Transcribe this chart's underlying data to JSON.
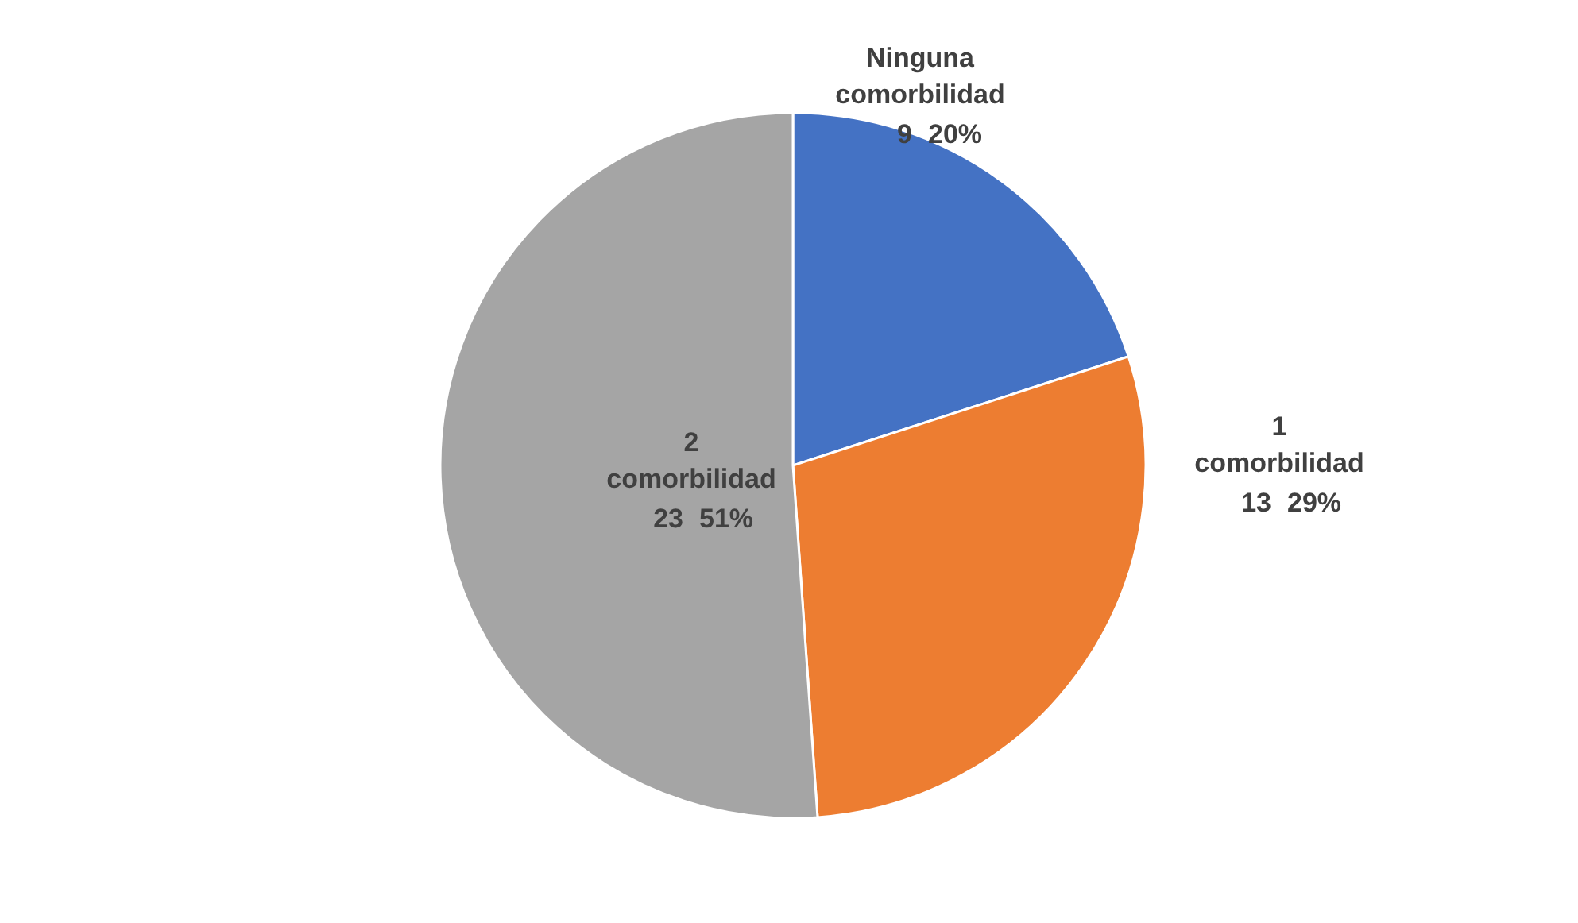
{
  "chart_data": {
    "type": "pie",
    "categories": [
      "Ninguna comorbilidad",
      "1 comorbilidad",
      "2 comorbilidad"
    ],
    "values": [
      9,
      13,
      23
    ],
    "data_labels": true,
    "colors": [
      "#4472c4",
      "#ed7d31",
      "#a5a5a5"
    ],
    "annotations": [
      {
        "text": "20%",
        "x": "Ninguna comorbilidad"
      },
      {
        "text": "29%",
        "x": "1 comorbilidad"
      },
      {
        "text": "51%",
        "x": "2 comorbilidad"
      }
    ]
  }
}
